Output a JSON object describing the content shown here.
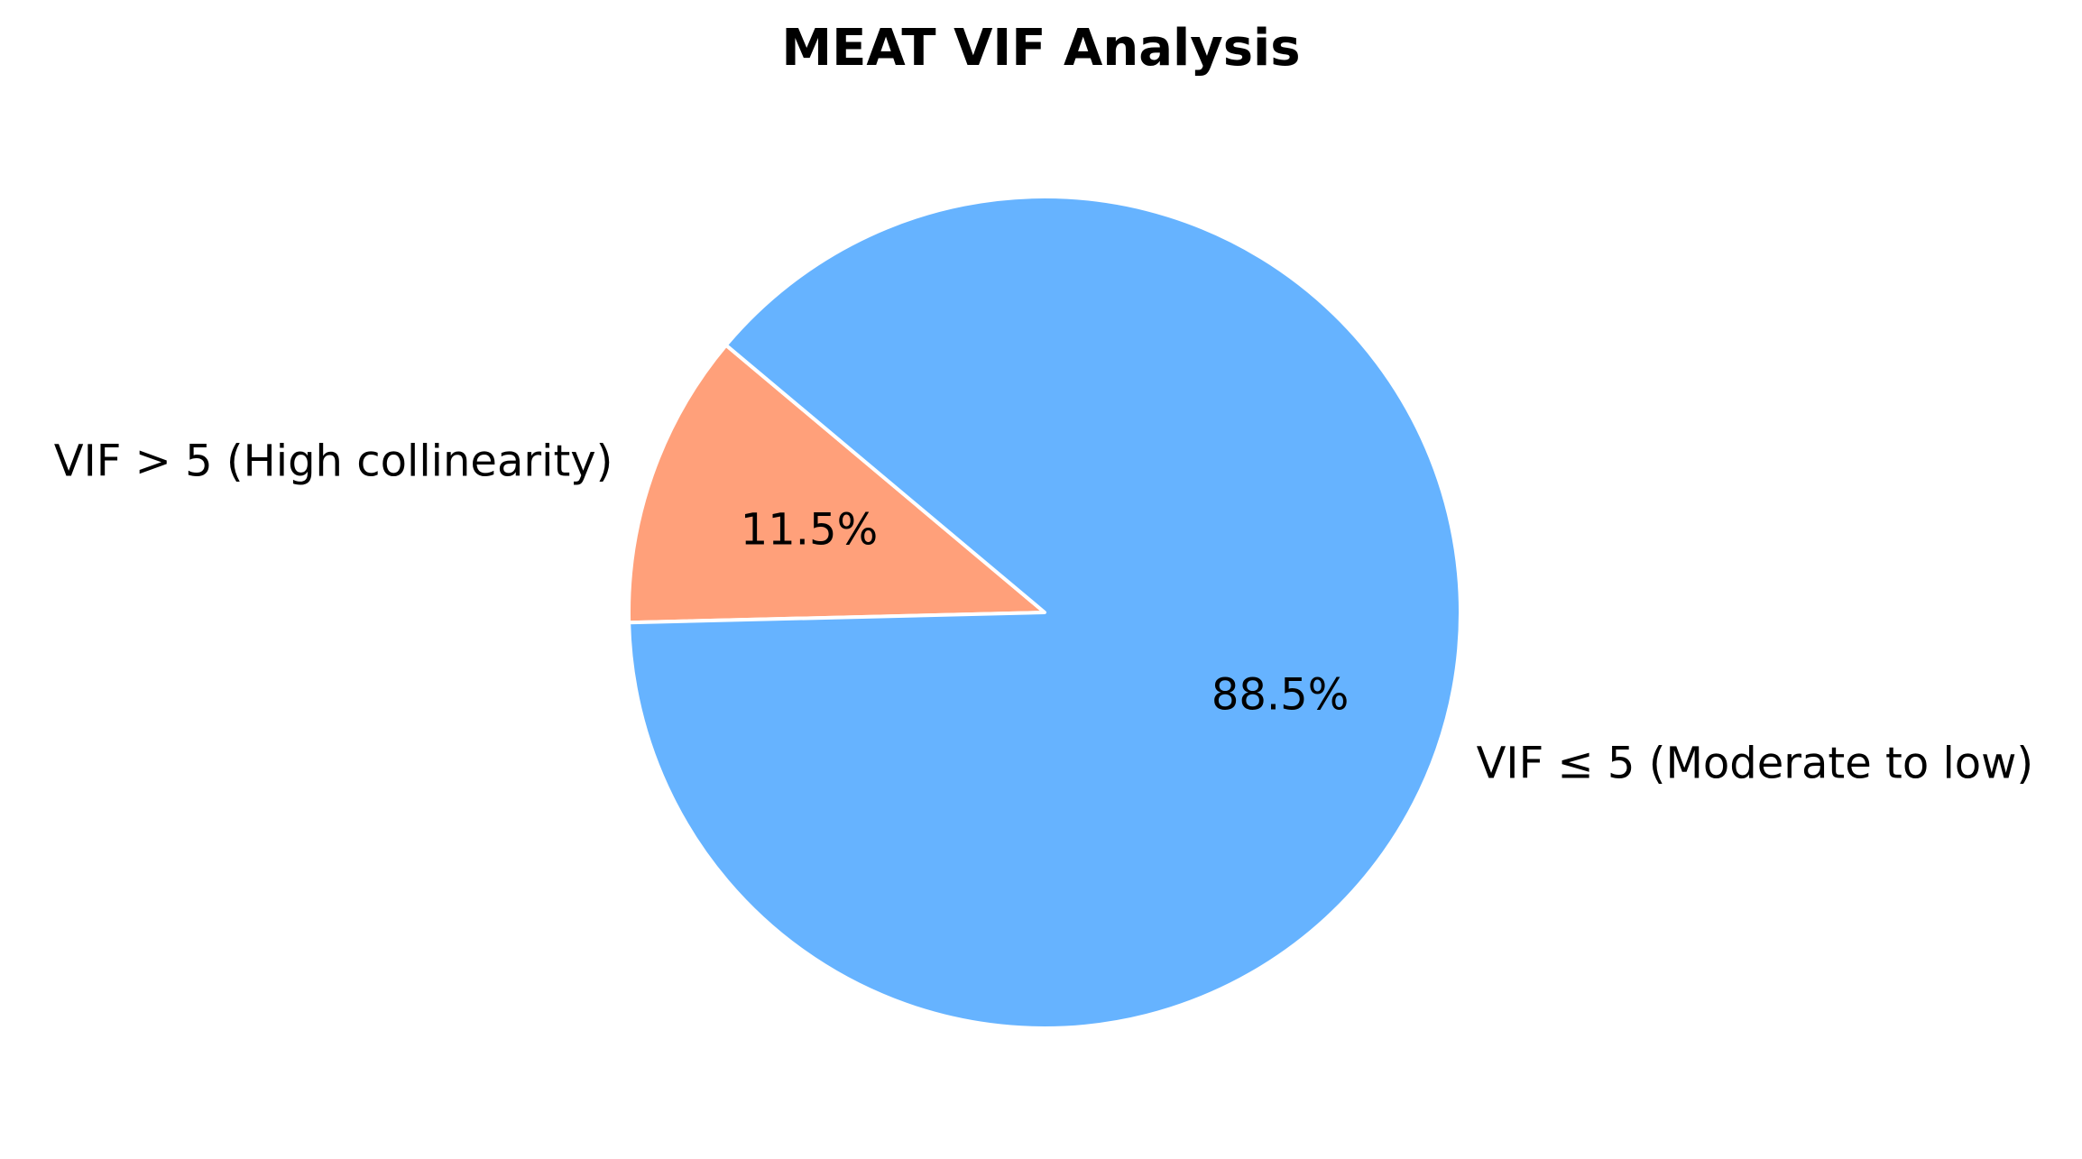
{
  "chart_data": {
    "type": "pie",
    "title": "MEAT VIF Analysis",
    "slices": [
      {
        "label": "VIF > 5 (High collinearity)",
        "value": 11.5,
        "pct_label": "11.5%",
        "color": "#ffa07a"
      },
      {
        "label": "VIF ≤ 5 (Moderate to low)",
        "value": 88.5,
        "pct_label": "88.5%",
        "color": "#66b3ff"
      }
    ],
    "legend": "none"
  }
}
